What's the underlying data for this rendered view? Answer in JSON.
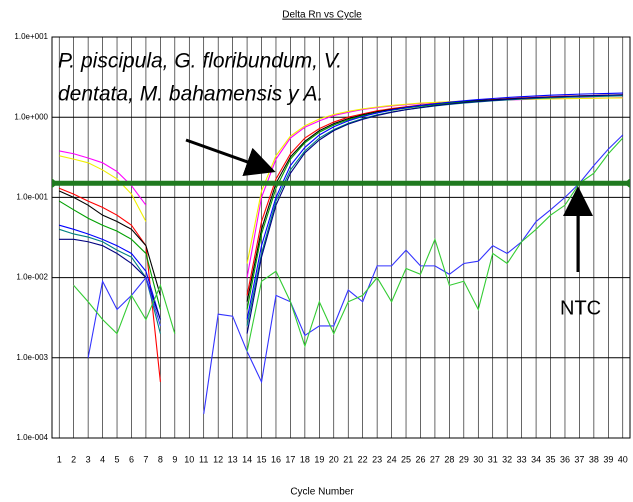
{
  "chart_data": {
    "type": "line",
    "title": "Delta Rn vs Cycle",
    "x_label": "Cycle Number",
    "log_y": true,
    "grid": true,
    "annotation_lines": [
      "P. piscipula, G. floribundum, V.",
      "dentata, M. bahamensis y A."
    ],
    "ntc_label": "NTC",
    "threshold": {
      "value": 0.15,
      "color": "#1f7a1f"
    },
    "xlim": [
      0.5,
      40.5
    ],
    "ylim": [
      0.0001,
      10
    ],
    "xticks": [
      1,
      2,
      3,
      4,
      5,
      6,
      7,
      8,
      9,
      10,
      11,
      12,
      13,
      14,
      15,
      16,
      17,
      18,
      19,
      20,
      21,
      22,
      23,
      24,
      25,
      26,
      27,
      28,
      29,
      30,
      31,
      32,
      33,
      34,
      35,
      36,
      37,
      38,
      39,
      40
    ],
    "yticks": [
      {
        "value": 10,
        "label": "1.0e+001"
      },
      {
        "value": 1,
        "label": "1.0e+000"
      },
      {
        "value": 0.1,
        "label": "1.0e-001"
      },
      {
        "value": 0.01,
        "label": "1.0e-002"
      },
      {
        "value": 0.001,
        "label": "1.0e-003"
      },
      {
        "value": 0.0001,
        "label": "1.0e-004"
      }
    ],
    "x": [
      1,
      2,
      3,
      4,
      5,
      6,
      7,
      8,
      9,
      10,
      11,
      12,
      13,
      14,
      15,
      16,
      17,
      18,
      19,
      20,
      21,
      22,
      23,
      24,
      25,
      26,
      27,
      28,
      29,
      30,
      31,
      32,
      33,
      34,
      35,
      36,
      37,
      38,
      39,
      40
    ],
    "series": [
      {
        "color": "#ff00ff",
        "values": [
          0.38,
          0.35,
          0.31,
          0.27,
          0.21,
          0.14,
          0.08,
          null,
          null,
          null,
          null,
          null,
          null,
          0.01,
          0.1,
          0.3,
          0.55,
          0.75,
          0.9,
          1.05,
          1.15,
          1.25,
          1.32,
          1.38,
          1.43,
          1.48,
          1.52,
          1.55,
          1.58,
          1.6,
          1.62,
          1.64,
          1.66,
          1.68,
          1.7,
          1.71,
          1.72,
          1.73,
          1.74,
          1.75
        ]
      },
      {
        "color": "#f0f000",
        "values": [
          0.33,
          0.3,
          0.27,
          0.22,
          0.17,
          0.11,
          0.05,
          null,
          null,
          null,
          null,
          null,
          null,
          0.015,
          0.12,
          0.33,
          0.58,
          0.78,
          0.95,
          1.08,
          1.18,
          1.27,
          1.34,
          1.4,
          1.45,
          1.5,
          1.53,
          1.56,
          1.59,
          1.61,
          1.63,
          1.65,
          1.67,
          1.68,
          1.69,
          1.7,
          1.71,
          1.72,
          1.73,
          1.74
        ]
      },
      {
        "color": "#ff0000",
        "values": [
          0.13,
          0.11,
          0.09,
          0.075,
          0.06,
          0.045,
          0.025,
          0.0005,
          null,
          null,
          null,
          null,
          null,
          0.006,
          0.05,
          0.17,
          0.35,
          0.55,
          0.72,
          0.87,
          1.0,
          1.1,
          1.2,
          1.28,
          1.35,
          1.42,
          1.48,
          1.53,
          1.58,
          1.62,
          1.66,
          1.7,
          1.74,
          1.77,
          1.8,
          1.83,
          1.85,
          1.87,
          1.89,
          1.9
        ]
      },
      {
        "color": "#000000",
        "values": [
          0.12,
          0.1,
          0.08,
          0.06,
          0.05,
          0.04,
          0.025,
          0.006,
          null,
          null,
          null,
          null,
          null,
          0.005,
          0.04,
          0.15,
          0.32,
          0.5,
          0.68,
          0.83,
          0.96,
          1.07,
          1.17,
          1.25,
          1.33,
          1.4,
          1.46,
          1.52,
          1.57,
          1.61,
          1.65,
          1.69,
          1.72,
          1.75,
          1.78,
          1.8,
          1.82,
          1.84,
          1.86,
          1.88
        ]
      },
      {
        "color": "#00a000",
        "values": [
          0.09,
          0.07,
          0.055,
          0.045,
          0.038,
          0.03,
          0.02,
          0.004,
          null,
          null,
          null,
          null,
          null,
          0.004,
          0.035,
          0.13,
          0.3,
          0.48,
          0.65,
          0.8,
          0.93,
          1.04,
          1.14,
          1.22,
          1.3,
          1.37,
          1.43,
          1.49,
          1.54,
          1.58,
          1.62,
          1.66,
          1.7,
          1.73,
          1.76,
          1.79,
          1.81,
          1.83,
          1.85,
          1.87
        ]
      },
      {
        "color": "#0000ff",
        "values": [
          0.045,
          0.04,
          0.035,
          0.03,
          0.025,
          0.02,
          0.012,
          0.003,
          null,
          null,
          null,
          null,
          null,
          0.003,
          0.025,
          0.1,
          0.25,
          0.42,
          0.6,
          0.76,
          0.9,
          1.02,
          1.13,
          1.23,
          1.32,
          1.4,
          1.47,
          1.54,
          1.6,
          1.66,
          1.71,
          1.76,
          1.8,
          1.84,
          1.88,
          1.91,
          1.94,
          1.96,
          1.98,
          2.0
        ]
      },
      {
        "color": "#008080",
        "values": [
          0.04,
          0.035,
          0.032,
          0.028,
          0.022,
          0.018,
          0.01,
          0.002,
          null,
          null,
          null,
          null,
          null,
          0.0025,
          0.02,
          0.09,
          0.22,
          0.38,
          0.55,
          0.7,
          0.84,
          0.96,
          1.07,
          1.16,
          1.24,
          1.31,
          1.38,
          1.44,
          1.5,
          1.55,
          1.6,
          1.64,
          1.68,
          1.71,
          1.74,
          1.77,
          1.79,
          1.81,
          1.83,
          1.85
        ]
      },
      {
        "color": "#000080",
        "values": [
          0.03,
          0.03,
          0.028,
          0.025,
          0.02,
          0.015,
          0.01,
          0.003,
          null,
          null,
          null,
          null,
          null,
          0.002,
          0.018,
          0.08,
          0.2,
          0.36,
          0.52,
          0.68,
          0.82,
          0.94,
          1.05,
          1.15,
          1.24,
          1.32,
          1.39,
          1.46,
          1.52,
          1.57,
          1.62,
          1.67,
          1.71,
          1.75,
          1.78,
          1.81,
          1.84,
          1.86,
          1.88,
          1.9
        ]
      },
      {
        "color": "#3333ff",
        "values": [
          null,
          null,
          0.001,
          0.009,
          0.004,
          0.006,
          0.01,
          0.0025,
          null,
          null,
          0.0002,
          0.0035,
          0.0033,
          0.0012,
          0.0005,
          0.006,
          0.005,
          0.0019,
          0.0025,
          0.0025,
          0.007,
          0.005,
          0.014,
          0.014,
          0.022,
          0.014,
          0.014,
          0.011,
          0.015,
          0.016,
          0.025,
          0.02,
          0.028,
          0.05,
          0.07,
          0.1,
          0.15,
          0.25,
          0.4,
          0.6
        ]
      },
      {
        "color": "#33cc33",
        "values": [
          null,
          0.008,
          0.005,
          0.003,
          0.002,
          0.006,
          0.003,
          0.008,
          0.002,
          null,
          0.009,
          null,
          null,
          0.0012,
          0.009,
          0.012,
          0.005,
          0.0014,
          0.005,
          0.002,
          0.005,
          0.006,
          0.01,
          0.005,
          0.013,
          0.011,
          0.03,
          0.008,
          0.009,
          0.004,
          0.02,
          0.015,
          0.028,
          0.04,
          0.06,
          0.08,
          0.15,
          0.2,
          0.35,
          0.55
        ]
      }
    ]
  }
}
